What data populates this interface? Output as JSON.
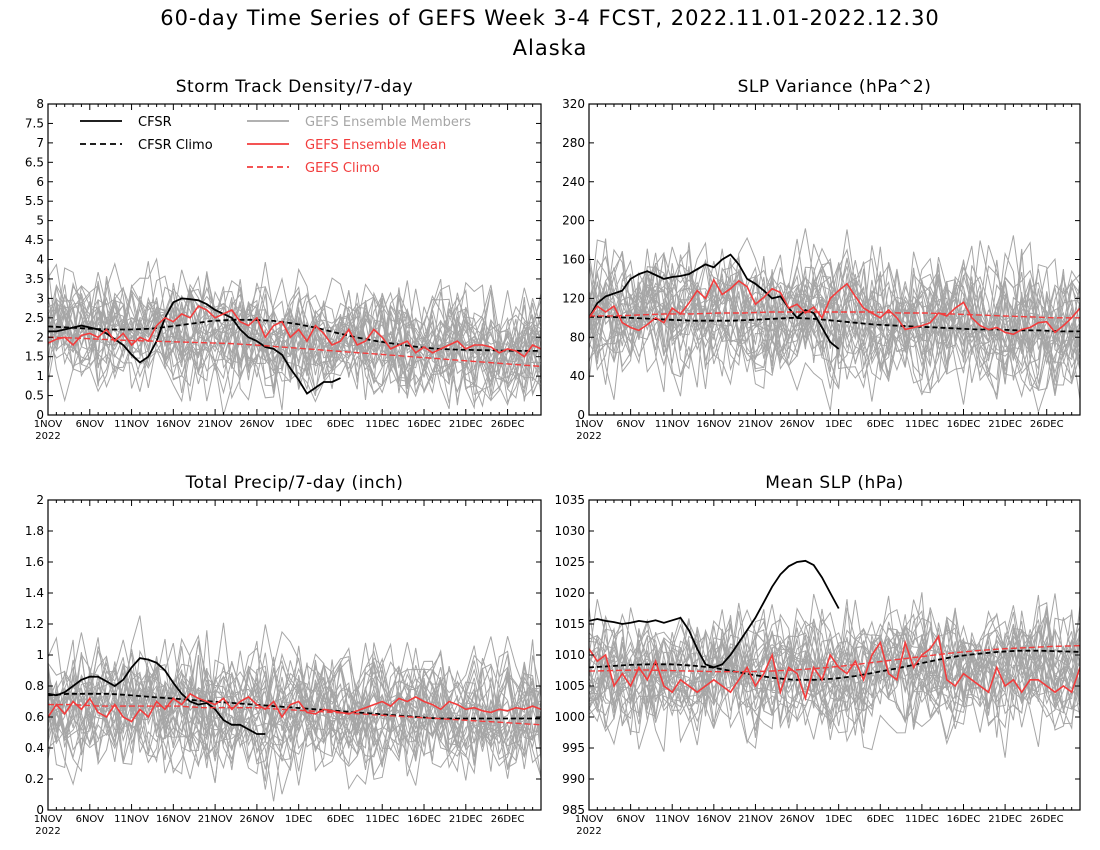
{
  "title": "60-day Time Series of GEFS Week 3-4 FCST, 2022.11.01-2022.12.30",
  "subtitle": "Alaska",
  "x_axis": {
    "ticks": [
      "1NOV",
      "6NOV",
      "11NOV",
      "16NOV",
      "21NOV",
      "26NOV",
      "1DEC",
      "6DEC",
      "11DEC",
      "16DEC",
      "21DEC",
      "26DEC"
    ],
    "year_label": "2022"
  },
  "legend": {
    "cfsr": "CFSR",
    "cfsr_climo": "CFSR Climo",
    "gefs_members": "GEFS Ensemble Members",
    "gefs_mean": "GEFS Ensemble Mean",
    "gefs_climo": "GEFS Climo"
  },
  "colors": {
    "cfsr": "#000000",
    "members": "#a6a6a6",
    "gefs": "#f23c3c"
  },
  "chart_data": [
    {
      "type": "line",
      "title": "Storm Track Density/7-day",
      "ylim": [
        0,
        8
      ],
      "yticks": [
        0,
        0.5,
        1,
        1.5,
        2,
        2.5,
        3,
        3.5,
        4,
        4.5,
        5,
        5.5,
        6,
        6.5,
        7,
        7.5,
        8
      ],
      "ytick_labels": [
        "0",
        "0.5",
        "1",
        "1.5",
        "2",
        "2.5",
        "3",
        "3.5",
        "4",
        "4.5",
        "5",
        "5.5",
        "6",
        "6.5",
        "7",
        "7.5",
        "8"
      ],
      "members": {
        "count": 30,
        "base": 2.2,
        "end": 1.7,
        "spread": 1.6
      },
      "series": [
        {
          "name": "CFSR",
          "style": "cfsr",
          "values": [
            2.15,
            2.15,
            2.2,
            2.25,
            2.3,
            2.25,
            2.2,
            2.1,
            1.95,
            1.8,
            1.55,
            1.35,
            1.5,
            1.9,
            2.5,
            2.9,
            3.0,
            2.98,
            2.95,
            2.85,
            2.7,
            2.6,
            2.5,
            2.2,
            2.0,
            1.9,
            1.75,
            1.7,
            1.55,
            1.2,
            0.9,
            0.55,
            0.7,
            0.85,
            0.85,
            0.95
          ]
        },
        {
          "name": "CFSR Climo",
          "style": "cfsr-climo",
          "values": [
            2.28,
            2.25,
            2.22,
            2.2,
            2.2,
            2.22,
            2.28,
            2.35,
            2.42,
            2.45,
            2.45,
            2.42,
            2.35,
            2.25,
            2.12,
            2.0,
            1.9,
            1.82,
            1.75,
            1.7,
            1.68,
            1.67,
            1.66,
            1.65,
            1.65
          ]
        },
        {
          "name": "GEFS Ensemble Mean",
          "style": "gefs-mean",
          "values": [
            1.85,
            1.95,
            2.0,
            1.8,
            2.05,
            2.1,
            2.0,
            2.2,
            1.9,
            2.1,
            1.8,
            2.0,
            1.9,
            2.3,
            2.5,
            2.4,
            2.6,
            2.5,
            2.8,
            2.7,
            2.5,
            2.6,
            2.7,
            2.4,
            2.3,
            2.5,
            2.0,
            2.3,
            2.4,
            2.0,
            2.2,
            1.9,
            2.3,
            2.1,
            1.8,
            1.9,
            2.2,
            1.8,
            1.9,
            2.2,
            2.0,
            1.7,
            1.8,
            1.9,
            1.6,
            1.75,
            1.6,
            1.7,
            1.8,
            1.9,
            1.7,
            1.8,
            1.8,
            1.75,
            1.6,
            1.7,
            1.65,
            1.5,
            1.8,
            1.7
          ]
        },
        {
          "name": "GEFS Climo",
          "style": "gefs-climo",
          "values": [
            2.0,
            1.98,
            1.95,
            1.92,
            1.9,
            1.88,
            1.86,
            1.84,
            1.8,
            1.75,
            1.7,
            1.65,
            1.6,
            1.55,
            1.5,
            1.45,
            1.4,
            1.35,
            1.3,
            1.25
          ]
        }
      ]
    },
    {
      "type": "line",
      "title": "SLP Variance (hPa^2)",
      "ylim": [
        0,
        320
      ],
      "yticks": [
        0,
        40,
        80,
        120,
        160,
        200,
        240,
        280,
        320
      ],
      "ytick_labels": [
        "0",
        "40",
        "80",
        "120",
        "160",
        "200",
        "240",
        "280",
        "320"
      ],
      "members": {
        "count": 30,
        "base": 110,
        "end": 90,
        "spread": 75
      },
      "series": [
        {
          "name": "CFSR",
          "style": "cfsr",
          "values": [
            100,
            115,
            122,
            125,
            128,
            140,
            145,
            148,
            144,
            140,
            142,
            143,
            145,
            150,
            155,
            152,
            160,
            165,
            155,
            140,
            135,
            128,
            120,
            122,
            110,
            100,
            108,
            105,
            90,
            75,
            68
          ]
        },
        {
          "name": "CFSR Climo",
          "style": "cfsr-climo",
          "values": [
            101,
            101,
            100,
            99,
            98,
            97,
            97,
            97,
            98,
            99,
            100,
            99,
            97,
            95,
            93,
            92,
            91,
            90,
            89,
            88,
            88,
            87,
            87,
            86,
            86
          ]
        },
        {
          "name": "GEFS Ensemble Mean",
          "style": "gefs-mean",
          "values": [
            100,
            112,
            106,
            112,
            95,
            90,
            87,
            93,
            100,
            95,
            110,
            104,
            115,
            128,
            120,
            139,
            124,
            130,
            138,
            132,
            114,
            121,
            130,
            126,
            110,
            114,
            105,
            111,
            100,
            120,
            128,
            135,
            122,
            110,
            105,
            100,
            108,
            100,
            88,
            90,
            92,
            95,
            105,
            102,
            110,
            116,
            100,
            92,
            88,
            90,
            85,
            83,
            88,
            90,
            95,
            96,
            85,
            92,
            100,
            110
          ]
        },
        {
          "name": "GEFS Climo",
          "style": "gefs-climo",
          "values": [
            102,
            102,
            103,
            104,
            104,
            105,
            105,
            106,
            106,
            106,
            106,
            106,
            105,
            105,
            104,
            103,
            102,
            101,
            100,
            100
          ]
        }
      ]
    },
    {
      "type": "line",
      "title": "Total Precip/7-day (inch)",
      "ylim": [
        0,
        2
      ],
      "yticks": [
        0,
        0.2,
        0.4,
        0.6,
        0.8,
        1,
        1.2,
        1.4,
        1.6,
        1.8,
        2
      ],
      "ytick_labels": [
        "0",
        "0.2",
        "0.4",
        "0.6",
        "0.8",
        "1",
        "1.2",
        "1.4",
        "1.6",
        "1.8",
        "2"
      ],
      "members": {
        "count": 30,
        "base": 0.7,
        "end": 0.6,
        "spread": 0.45
      },
      "series": [
        {
          "name": "CFSR",
          "style": "cfsr",
          "values": [
            0.75,
            0.74,
            0.76,
            0.8,
            0.84,
            0.86,
            0.86,
            0.83,
            0.8,
            0.84,
            0.92,
            0.98,
            0.97,
            0.95,
            0.9,
            0.82,
            0.75,
            0.7,
            0.68,
            0.69,
            0.65,
            0.58,
            0.55,
            0.55,
            0.52,
            0.49,
            0.49
          ]
        },
        {
          "name": "CFSR Climo",
          "style": "cfsr-climo",
          "values": [
            0.74,
            0.75,
            0.75,
            0.75,
            0.74,
            0.73,
            0.72,
            0.71,
            0.7,
            0.69,
            0.68,
            0.67,
            0.66,
            0.65,
            0.64,
            0.63,
            0.62,
            0.61,
            0.6,
            0.59,
            0.59,
            0.59,
            0.59,
            0.59,
            0.59
          ]
        },
        {
          "name": "GEFS Ensemble Mean",
          "style": "gefs-mean",
          "values": [
            0.6,
            0.68,
            0.62,
            0.7,
            0.65,
            0.72,
            0.63,
            0.6,
            0.68,
            0.6,
            0.57,
            0.65,
            0.6,
            0.7,
            0.65,
            0.72,
            0.68,
            0.75,
            0.72,
            0.7,
            0.68,
            0.72,
            0.65,
            0.7,
            0.73,
            0.68,
            0.65,
            0.7,
            0.6,
            0.68,
            0.7,
            0.63,
            0.62,
            0.65,
            0.64,
            0.63,
            0.62,
            0.64,
            0.66,
            0.68,
            0.7,
            0.67,
            0.72,
            0.7,
            0.73,
            0.7,
            0.68,
            0.65,
            0.7,
            0.68,
            0.65,
            0.66,
            0.64,
            0.63,
            0.65,
            0.64,
            0.66,
            0.65,
            0.67,
            0.65
          ]
        },
        {
          "name": "GEFS Climo",
          "style": "gefs-climo",
          "values": [
            0.68,
            0.68,
            0.67,
            0.67,
            0.67,
            0.67,
            0.66,
            0.66,
            0.66,
            0.65,
            0.64,
            0.63,
            0.62,
            0.61,
            0.6,
            0.59,
            0.58,
            0.57,
            0.56,
            0.55
          ]
        }
      ]
    },
    {
      "type": "line",
      "title": "Mean SLP (hPa)",
      "ylim": [
        985,
        1035
      ],
      "yticks": [
        985,
        990,
        995,
        1000,
        1005,
        1010,
        1015,
        1020,
        1025,
        1030,
        1035
      ],
      "ytick_labels": [
        "985",
        "990",
        "995",
        "1000",
        "1005",
        "1010",
        "1015",
        "1020",
        "1025",
        "1030",
        "1035"
      ],
      "members": {
        "count": 30,
        "base": 1007,
        "end": 1008,
        "spread": 11
      },
      "series": [
        {
          "name": "CFSR",
          "style": "cfsr",
          "values": [
            1015.5,
            1015.8,
            1015.5,
            1015.3,
            1015.0,
            1015.2,
            1015.5,
            1015.3,
            1015.6,
            1015.2,
            1015.6,
            1016.0,
            1014.0,
            1011.0,
            1008.5,
            1008.0,
            1008.5,
            1010.0,
            1012.0,
            1014.0,
            1016.0,
            1018.5,
            1021.0,
            1023.0,
            1024.3,
            1025.0,
            1025.2,
            1024.5,
            1022.5,
            1020.0,
            1017.5
          ]
        },
        {
          "name": "CFSR Climo",
          "style": "cfsr-climo",
          "values": [
            1008.0,
            1008.2,
            1008.4,
            1008.5,
            1008.5,
            1008.3,
            1008.0,
            1007.4,
            1006.8,
            1006.3,
            1006.0,
            1006.0,
            1006.2,
            1006.6,
            1007.2,
            1007.8,
            1008.5,
            1009.2,
            1009.8,
            1010.2,
            1010.5,
            1010.7,
            1010.7,
            1010.6,
            1010.5
          ]
        },
        {
          "name": "GEFS Ensemble Mean",
          "style": "gefs-mean",
          "values": [
            1011,
            1009,
            1010,
            1005,
            1007,
            1005,
            1008,
            1006,
            1009,
            1005,
            1004,
            1006,
            1005,
            1004,
            1005,
            1006,
            1005,
            1004,
            1006,
            1008,
            1005,
            1007,
            1010,
            1004,
            1008,
            1007,
            1003,
            1008,
            1006,
            1010,
            1008,
            1007,
            1009,
            1006,
            1010,
            1012,
            1007,
            1006,
            1012,
            1008,
            1010,
            1011,
            1013,
            1006,
            1005,
            1007,
            1006,
            1005,
            1004,
            1008,
            1005,
            1006,
            1004,
            1006,
            1006,
            1005,
            1004,
            1005,
            1004,
            1008
          ]
        },
        {
          "name": "GEFS Climo",
          "style": "gefs-climo",
          "values": [
            1007.4,
            1007.5,
            1007.6,
            1007.5,
            1007.4,
            1007.3,
            1007.3,
            1007.4,
            1007.6,
            1007.9,
            1008.3,
            1008.8,
            1009.3,
            1009.8,
            1010.3,
            1010.7,
            1011.0,
            1011.2,
            1011.4,
            1011.5
          ]
        }
      ]
    }
  ]
}
